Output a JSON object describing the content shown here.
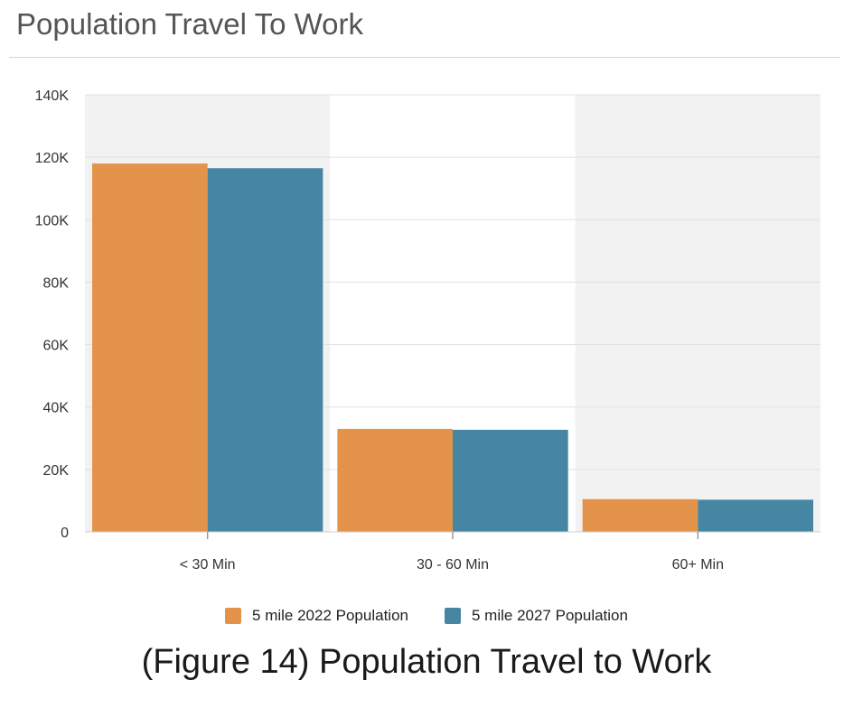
{
  "header": {
    "title": "Population Travel To Work"
  },
  "caption": "(Figure 14) Population Travel to Work",
  "colors": {
    "series_2022": "#e3944a",
    "series_2027": "#4686a3",
    "band": "#f2f2f2",
    "grid": "#e1e1e1"
  },
  "chart_data": {
    "type": "bar",
    "title": "Population Travel To Work",
    "xlabel": "",
    "ylabel": "",
    "categories": [
      "< 30 Min",
      "30 - 60 Min",
      "60+ Min"
    ],
    "series": [
      {
        "name": "5 mile 2022 Population",
        "values": [
          118000,
          33000,
          10500
        ]
      },
      {
        "name": "5 mile 2027 Population",
        "values": [
          116500,
          32700,
          10300
        ]
      }
    ],
    "ylim": [
      0,
      140000
    ],
    "yticks": [
      0,
      20000,
      40000,
      60000,
      80000,
      100000,
      120000,
      140000
    ],
    "ytick_labels": [
      "0",
      "20K",
      "40K",
      "60K",
      "80K",
      "100K",
      "120K",
      "140K"
    ],
    "grid": true,
    "alternating_bands": true,
    "legend_position": "bottom-center"
  }
}
